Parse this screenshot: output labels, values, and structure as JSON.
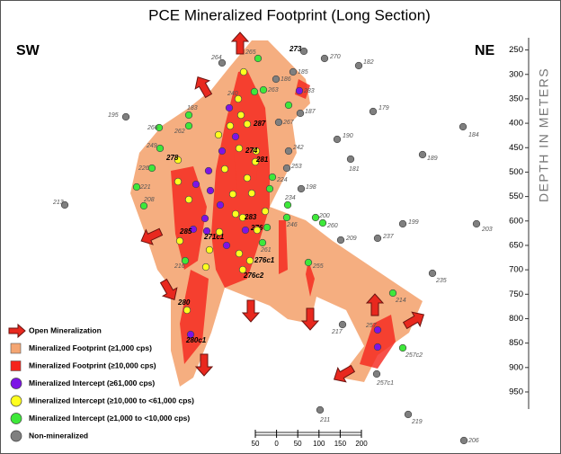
{
  "title": "PCE Mineralized Footprint (Long Section)",
  "directions": {
    "left": "SW",
    "right": "NE"
  },
  "depth_axis": {
    "label": "DEPTH IN METERS",
    "range": [
      225,
      985
    ],
    "ticks": [
      250,
      300,
      350,
      400,
      450,
      500,
      550,
      600,
      650,
      700,
      750,
      800,
      850,
      900,
      950
    ]
  },
  "scale_bar": {
    "range": [
      -50,
      200
    ],
    "ticks": [
      {
        "value": -50,
        "label": "50"
      },
      0,
      50,
      100,
      150,
      200
    ]
  },
  "legend": [
    {
      "label": "Open Mineralization",
      "color": "#e8281e"
    },
    {
      "label": "Mineralized Footprint (≥1,000 cps)",
      "color": "#f4a572"
    },
    {
      "label": "Mineralized Footprint (≥10,000 cps)",
      "color": "#f5241b"
    },
    {
      "label": "Mineralized Intercept  (≥61,000 cps)",
      "color": "#7d14e6"
    },
    {
      "label": "Mineralized Intercept  (≥10,000  to  <61,000 cps)",
      "color": "#ffff1e"
    },
    {
      "label": "Mineralized Intercept  (≥1,000  to  <10,000 cps)",
      "color": "#3ee83a"
    },
    {
      "label": "Non-mineralized",
      "color": "#7f7f7f"
    }
  ],
  "holes": [
    {
      "label": "273",
      "color": "#7f7f7f"
    },
    {
      "label": "270",
      "color": "#7f7f7f"
    },
    {
      "label": "182",
      "color": "#7f7f7f"
    },
    {
      "label": "264",
      "color": "#7f7f7f"
    },
    {
      "label": "185",
      "color": "#7f7f7f"
    },
    {
      "label": "186",
      "color": "#7f7f7f"
    },
    {
      "label": "195",
      "color": "#7f7f7f"
    },
    {
      "label": "179",
      "color": "#7f7f7f"
    },
    {
      "label": "187",
      "color": "#7f7f7f"
    },
    {
      "label": "184",
      "color": "#7f7f7f"
    },
    {
      "label": "190",
      "color": "#7f7f7f"
    },
    {
      "label": "242",
      "color": "#7f7f7f"
    },
    {
      "label": "189",
      "color": "#7f7f7f"
    },
    {
      "label": "181",
      "color": "#7f7f7f"
    },
    {
      "label": "253",
      "color": "#7f7f7f"
    },
    {
      "label": "198",
      "color": "#7f7f7f"
    },
    {
      "label": "213",
      "color": "#7f7f7f"
    },
    {
      "label": "199",
      "color": "#7f7f7f"
    },
    {
      "label": "203",
      "color": "#7f7f7f"
    },
    {
      "label": "209",
      "color": "#7f7f7f"
    },
    {
      "label": "237",
      "color": "#7f7f7f"
    },
    {
      "label": "235",
      "color": "#7f7f7f"
    },
    {
      "label": "217",
      "color": "#7f7f7f"
    },
    {
      "label": "211",
      "color": "#7f7f7f"
    },
    {
      "label": "219",
      "color": "#7f7f7f"
    },
    {
      "label": "206",
      "color": "#7f7f7f"
    },
    {
      "label": "257c1",
      "color": "#7f7f7f"
    },
    {
      "label": "267",
      "color": "#7f7f7f"
    },
    {
      "label": "265",
      "color": "#3ee83a"
    },
    {
      "label": "263",
      "color": "#3ee83a"
    },
    {
      "label": "183",
      "color": "#3ee83a"
    },
    {
      "label": "262",
      "color": "#3ee83a"
    },
    {
      "label": "266",
      "color": "#3ee83a"
    },
    {
      "label": "249",
      "color": "#3ee83a"
    },
    {
      "label": "226",
      "color": "#3ee83a"
    },
    {
      "label": "221",
      "color": "#3ee83a"
    },
    {
      "label": "208",
      "color": "#3ee83a"
    },
    {
      "label": "216",
      "color": "#3ee83a"
    },
    {
      "label": "214",
      "color": "#3ee83a"
    },
    {
      "label": "257c2",
      "color": "#3ee83a"
    },
    {
      "label": "200",
      "color": "#3ee83a"
    },
    {
      "label": "260",
      "color": "#3ee83a"
    },
    {
      "label": "234",
      "color": "#3ee83a"
    },
    {
      "label": "246",
      "color": "#3ee83a"
    },
    {
      "label": "261",
      "color": "#3ee83a"
    },
    {
      "label": "255",
      "color": "#3ee83a"
    },
    {
      "label": "224",
      "color": "#3ee83a"
    },
    {
      "label": "240",
      "color": "#3ee83a"
    },
    {
      "label": "283",
      "color": "#7d14e6"
    },
    {
      "label": "276",
      "color": "#7d14e6"
    },
    {
      "label": "285",
      "color": "#7d14e6"
    },
    {
      "label": "271c1",
      "color": "#7d14e6"
    },
    {
      "label": "280c1",
      "color": "#7d14e6"
    },
    {
      "label": "257",
      "color": "#7d14e6"
    },
    {
      "label": "280",
      "color": "#ffff1e"
    },
    {
      "label": "276c1",
      "color": "#ffff1e"
    },
    {
      "label": "276c2",
      "color": "#ffff1e"
    },
    {
      "label": "278",
      "color": "#ffff1e"
    },
    {
      "label": "274",
      "color": "#ffff1e"
    },
    {
      "label": "281",
      "color": "#ffff1e"
    },
    {
      "label": "287",
      "color": "#ffff1e"
    },
    {
      "label": "283",
      "color": "#ffff1e"
    },
    {
      "color": "#7d14e6"
    },
    {
      "color": "#7d14e6"
    },
    {
      "color": "#7d14e6"
    },
    {
      "color": "#7d14e6"
    },
    {
      "color": "#7d14e6"
    },
    {
      "color": "#7d14e6"
    },
    {
      "color": "#7d14e6"
    },
    {
      "color": "#7d14e6"
    },
    {
      "color": "#7d14e6"
    },
    {
      "color": "#7d14e6"
    },
    {
      "color": "#ffff1e"
    },
    {
      "color": "#ffff1e"
    },
    {
      "color": "#ffff1e"
    },
    {
      "color": "#ffff1e"
    },
    {
      "color": "#ffff1e"
    },
    {
      "color": "#ffff1e"
    },
    {
      "color": "#ffff1e"
    },
    {
      "color": "#ffff1e"
    },
    {
      "color": "#ffff1e"
    },
    {
      "color": "#ffff1e"
    },
    {
      "color": "#ffff1e"
    },
    {
      "color": "#ffff1e"
    },
    {
      "color": "#ffff1e"
    },
    {
      "color": "#ffff1e"
    },
    {
      "color": "#ffff1e"
    },
    {
      "color": "#ffff1e"
    },
    {
      "color": "#ffff1e"
    },
    {
      "color": "#ffff1e"
    },
    {
      "color": "#ffff1e"
    },
    {
      "color": "#ffff1e"
    },
    {
      "color": "#3ee83a"
    },
    {
      "color": "#3ee83a"
    },
    {
      "color": "#3ee83a"
    }
  ]
}
